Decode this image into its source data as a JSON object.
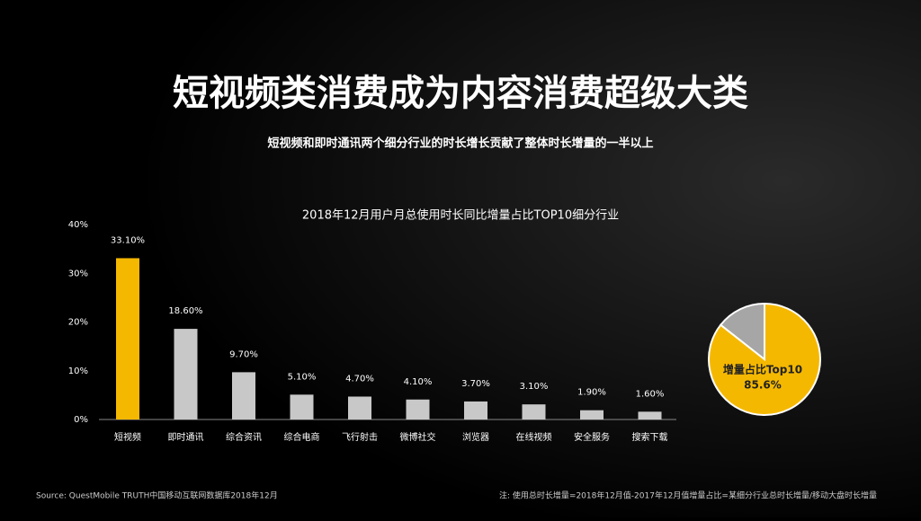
{
  "header": {
    "title": "短视频类消费成为内容消费超级大类",
    "subtitle": "短视频和即时通讯两个细分行业的时长增长贡献了整体时长增量的一半以上"
  },
  "chart_data": [
    {
      "type": "bar",
      "title": "2018年12月用户月总使用时长同比增量占比TOP10细分行业",
      "categories": [
        "短视频",
        "即时通讯",
        "综合资讯",
        "综合电商",
        "飞行射击",
        "微博社交",
        "浏览器",
        "在线视频",
        "安全服务",
        "搜索下载"
      ],
      "values": [
        33.1,
        18.6,
        9.7,
        5.1,
        4.7,
        4.1,
        3.7,
        3.1,
        1.9,
        1.6
      ],
      "value_labels": [
        "33.10%",
        "18.60%",
        "9.70%",
        "5.10%",
        "4.70%",
        "4.10%",
        "3.70%",
        "3.10%",
        "1.90%",
        "1.60%"
      ],
      "colors": [
        "#f5b800",
        "#c8c8c8",
        "#c8c8c8",
        "#c8c8c8",
        "#c8c8c8",
        "#c8c8c8",
        "#c8c8c8",
        "#c8c8c8",
        "#c8c8c8",
        "#c8c8c8"
      ],
      "ylim": [
        0,
        40
      ],
      "yticks": [
        {
          "value": 0,
          "label": "0%"
        },
        {
          "value": 10,
          "label": "10%"
        },
        {
          "value": 20,
          "label": "20%"
        },
        {
          "value": 30,
          "label": "30%"
        },
        {
          "value": 40,
          "label": "40%"
        }
      ],
      "grid": false
    },
    {
      "type": "pie",
      "categories": [
        "增量占比Top10",
        null
      ],
      "values": [
        85.6,
        14.4
      ],
      "value_labels": [
        "85.6%",
        null
      ],
      "colors": [
        "#f5b800",
        "#a6a6a6"
      ]
    }
  ],
  "footer": {
    "source": "Source: QuestMobile TRUTH中国移动互联网数据库2018年12月",
    "note": "注: 使用总时长增量=2018年12月值-2017年12月值增量占比=某细分行业总时长增量/移动大盘时长增量"
  }
}
